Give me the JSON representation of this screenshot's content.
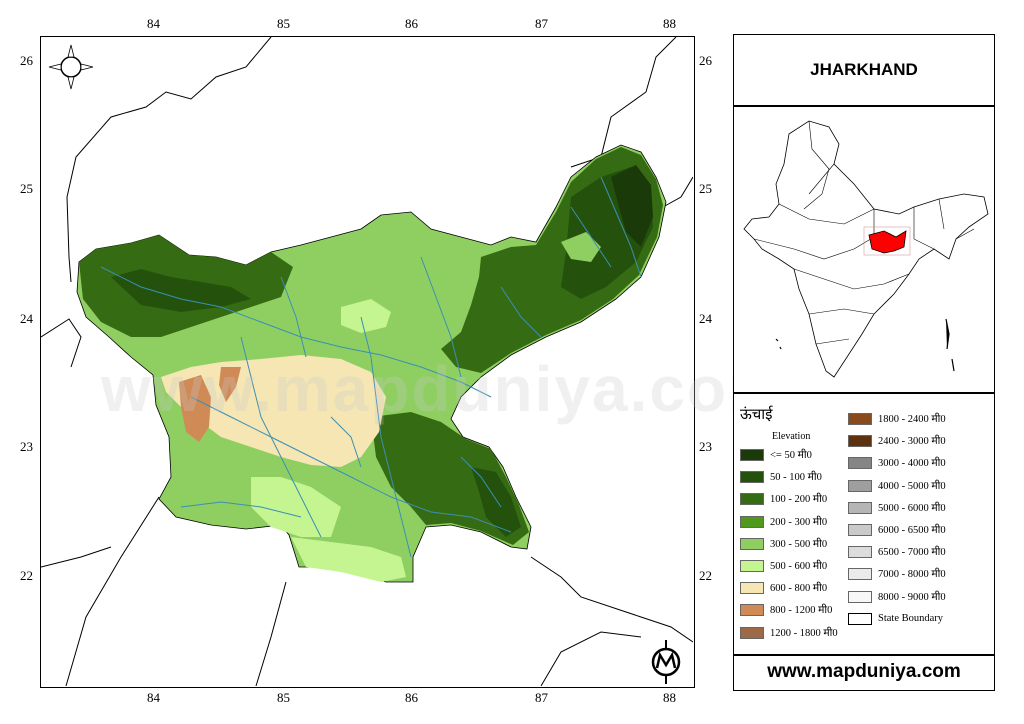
{
  "map": {
    "lon_ticks": [
      "84",
      "85",
      "86",
      "87",
      "88"
    ],
    "lat_ticks": [
      "26",
      "25",
      "24",
      "23",
      "22"
    ],
    "watermark": "www.mapduniya.com"
  },
  "panel": {
    "title": "JHARKHAND",
    "website": "www.mapduniya.com"
  },
  "legend": {
    "title": "ऊंचाई",
    "subtitle": "Elevation",
    "items_left": [
      {
        "label": "<= 50 मी0",
        "color": "#1a3a0a"
      },
      {
        "label": "50 - 100 मी0",
        "color": "#24520d"
      },
      {
        "label": "100 - 200 मी0",
        "color": "#356b12"
      },
      {
        "label": "200 - 300 मी0",
        "color": "#4f9a1c"
      },
      {
        "label": "300 - 500 मी0",
        "color": "#8fcf62"
      },
      {
        "label": "500 - 600 मी0",
        "color": "#c4f591"
      },
      {
        "label": "600 - 800 मी0",
        "color": "#f5e6b4"
      },
      {
        "label": "800 - 1200 मी0",
        "color": "#cf8a55"
      },
      {
        "label": "1200 - 1800 मी0",
        "color": "#9c6a47"
      }
    ],
    "items_right": [
      {
        "label": "1800 - 2400 मी0",
        "color": "#8a4a1e"
      },
      {
        "label": "2400 - 3000 मी0",
        "color": "#5c3211"
      },
      {
        "label": "3000 - 4000 मी0",
        "color": "#858585"
      },
      {
        "label": "4000 - 5000 मी0",
        "color": "#9e9e9e"
      },
      {
        "label": "5000 - 6000 मी0",
        "color": "#b5b5b5"
      },
      {
        "label": "6000 - 6500 मी0",
        "color": "#cacaca"
      },
      {
        "label": "6500 - 7000 मी0",
        "color": "#dcdcdc"
      },
      {
        "label": "7000 - 8000 मी0",
        "color": "#ebebeb"
      },
      {
        "label": "8000 - 9000 मी0",
        "color": "#f7f7f7"
      },
      {
        "label": "State Boundary",
        "color": "#ffffff"
      }
    ]
  },
  "colors": {
    "highlight_state": "#ff0000",
    "river": "#3a8fb5"
  }
}
